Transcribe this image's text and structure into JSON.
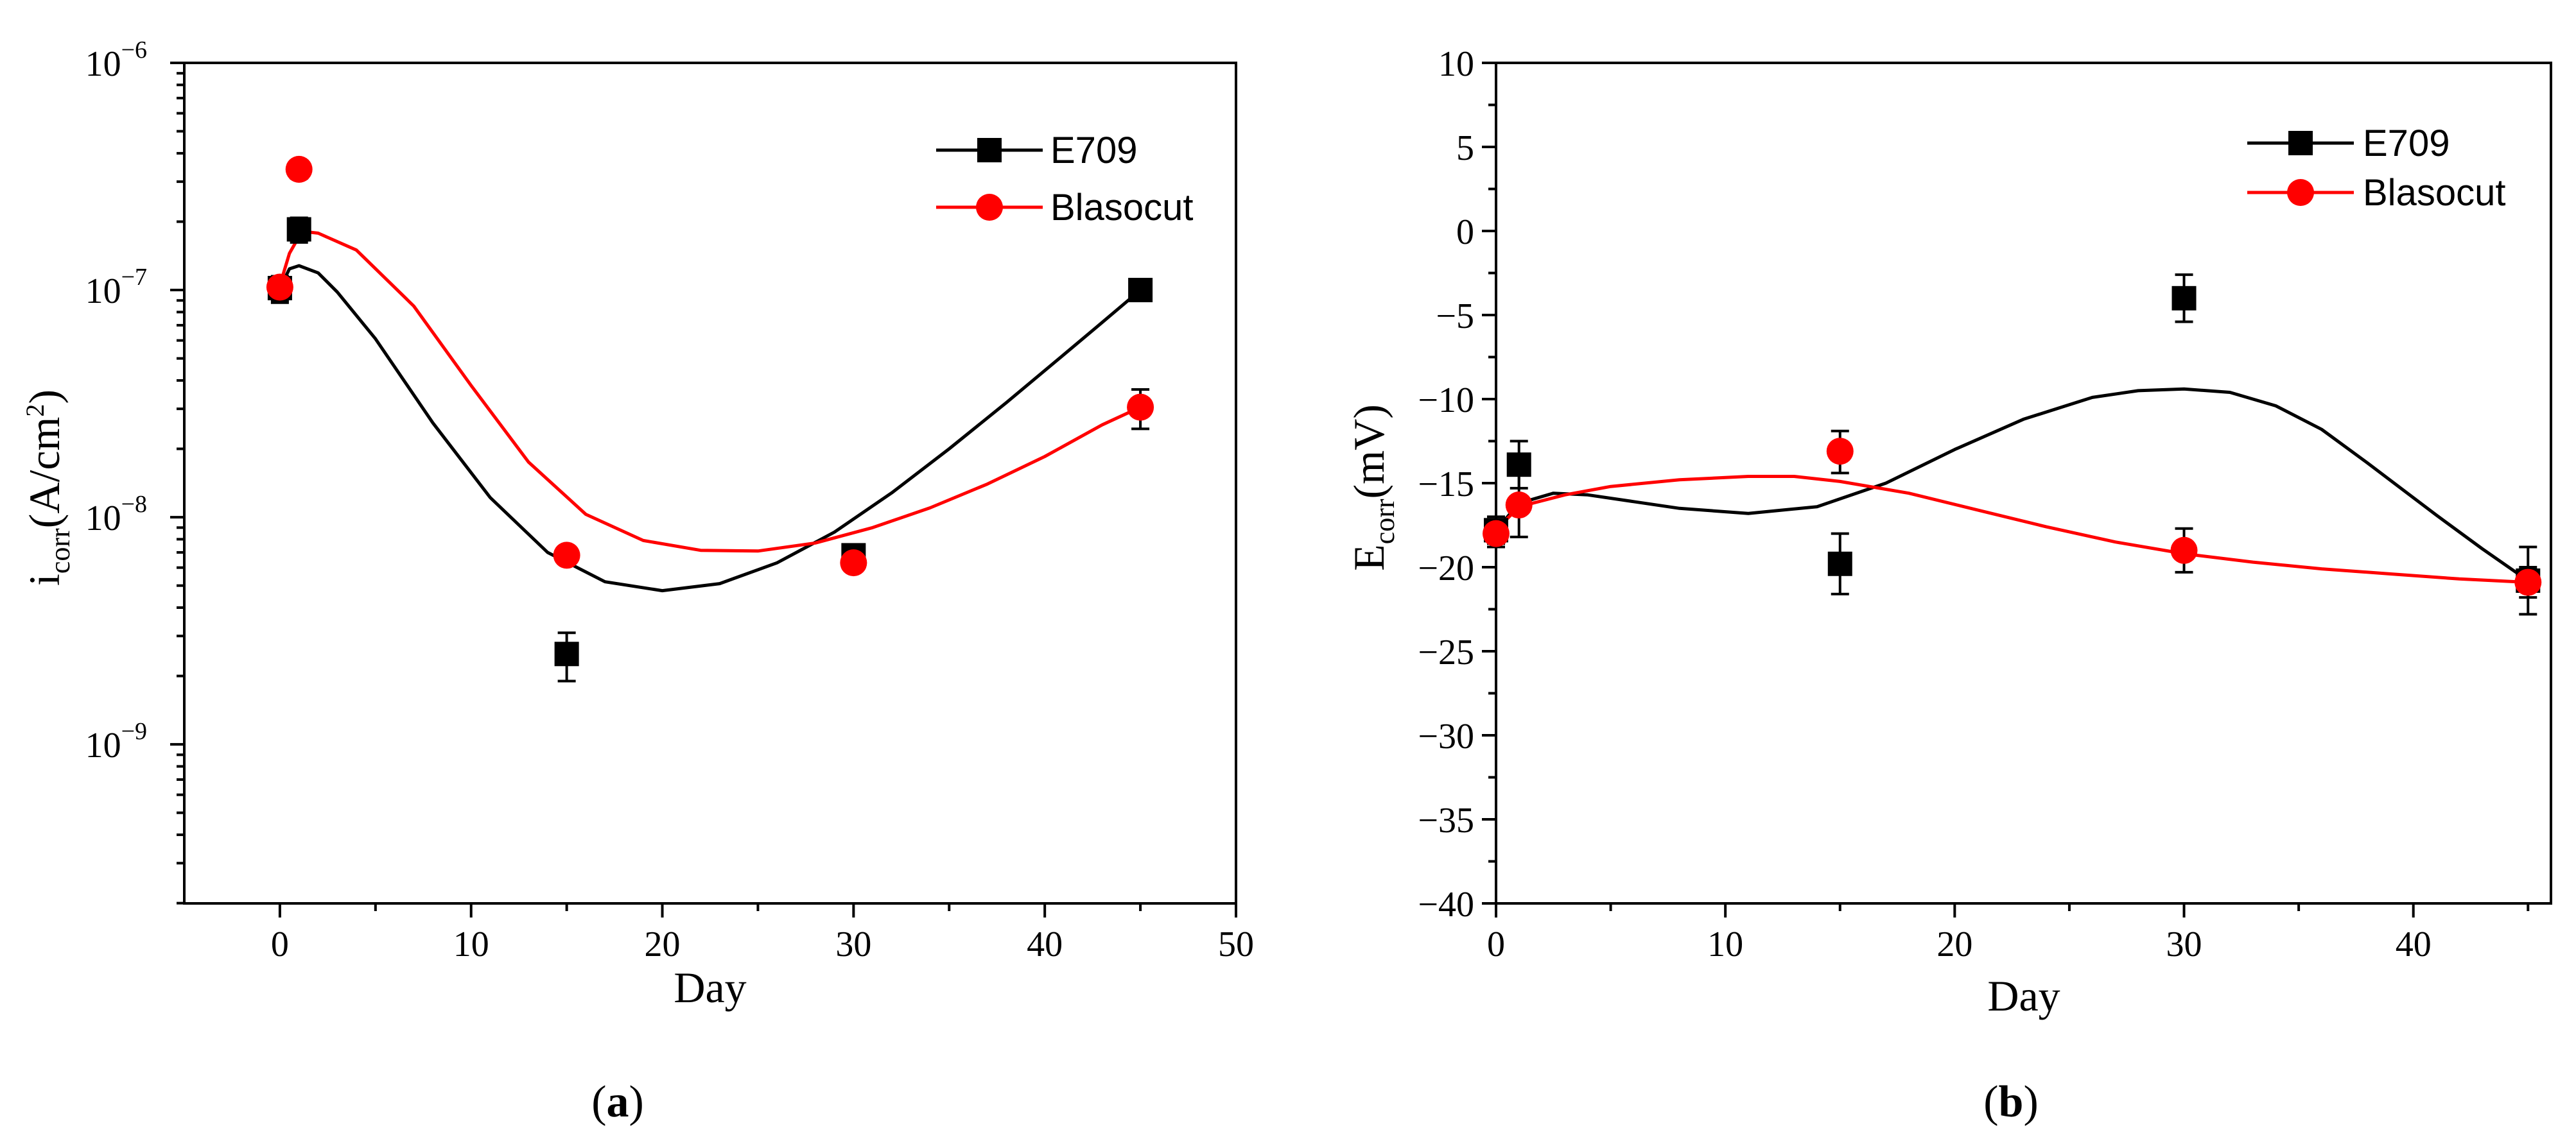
{
  "chart_data": [
    {
      "type": "scatter",
      "panel_label_open": "(",
      "panel_label_letter": "a",
      "panel_label_close": ")",
      "xlabel": "Day",
      "ylabel_main": "i",
      "ylabel_sub": "corr",
      "ylabel_unit": "(A/cm",
      "ylabel_sup": "2",
      "ylabel_close": ")",
      "yscale": "log",
      "xlim": [
        -5,
        50
      ],
      "ylim_exp": [
        -9.7,
        -6
      ],
      "xticks": [
        0,
        10,
        20,
        30,
        40,
        50
      ],
      "xtick_labels": [
        "0",
        "10",
        "20",
        "30",
        "40",
        "50"
      ],
      "yticks_exp": [
        -9,
        -8,
        -7,
        -6
      ],
      "ytick_base": "10",
      "ytick_exps": [
        "−9",
        "−8",
        "−7",
        "−6"
      ],
      "legend_position": "top-right",
      "series": [
        {
          "name": "E709",
          "color": "#000000",
          "marker": "square",
          "x": [
            0,
            1,
            15,
            30,
            45
          ],
          "y": [
            1.02e-07,
            1.85e-07,
            2.5e-09,
            6.8e-09,
            1e-07
          ],
          "err_low": [
            8.8e-08,
            1.62e-07,
            1.9e-09,
            6.2e-09,
            9.7e-08
          ],
          "err_high": [
            1.15e-07,
            2.08e-07,
            3.1e-09,
            7.4e-09,
            1.03e-07
          ],
          "fit_x": [
            0,
            0.5,
            1,
            2,
            3,
            5,
            8,
            11,
            14,
            17,
            20,
            23,
            26,
            29,
            32,
            35,
            38,
            41,
            43,
            45
          ],
          "fit_y": [
            1.02e-07,
            1.24e-07,
            1.28e-07,
            1.19e-07,
            9.8e-08,
            6.1e-08,
            2.6e-08,
            1.22e-08,
            7e-09,
            5.2e-09,
            4.75e-09,
            5.1e-09,
            6.3e-09,
            8.6e-09,
            1.28e-08,
            2e-08,
            3.2e-08,
            5.2e-08,
            7.2e-08,
            1e-07
          ]
        },
        {
          "name": "Blasocut",
          "color": "#ff0000",
          "marker": "circle",
          "x": [
            0,
            1,
            15,
            30,
            45
          ],
          "y": [
            1.03e-07,
            3.4e-07,
            6.8e-09,
            6.3e-09,
            3.05e-08
          ],
          "err_low": [
            9e-08,
            3.1e-07,
            6.4e-09,
            5.9e-09,
            2.45e-08
          ],
          "err_high": [
            1.15e-07,
            3.7e-07,
            7.2e-09,
            6.7e-09,
            3.65e-08
          ],
          "fit_x": [
            0,
            0.5,
            1,
            1.5,
            2,
            4,
            7,
            10,
            13,
            16,
            19,
            22,
            25,
            28,
            31,
            34,
            37,
            40,
            43,
            45
          ],
          "fit_y": [
            1.05e-07,
            1.45e-07,
            1.72e-07,
            1.8e-07,
            1.78e-07,
            1.5e-07,
            8.5e-08,
            3.8e-08,
            1.75e-08,
            1.03e-08,
            7.9e-09,
            7.15e-09,
            7.1e-09,
            7.7e-09,
            9e-09,
            1.1e-08,
            1.4e-08,
            1.85e-08,
            2.55e-08,
            3.05e-08
          ]
        }
      ]
    },
    {
      "type": "scatter",
      "panel_label_open": "(",
      "panel_label_letter": "b",
      "panel_label_close": ")",
      "xlabel": "Day",
      "ylabel_main": "E",
      "ylabel_sub": "corr",
      "ylabel_unit": "(mV)",
      "yscale": "linear",
      "xlim": [
        0,
        46
      ],
      "ylim": [
        -40,
        10
      ],
      "xticks": [
        0,
        10,
        20,
        30,
        40
      ],
      "xtick_labels": [
        "0",
        "10",
        "20",
        "30",
        "40"
      ],
      "yticks": [
        -40,
        -35,
        -30,
        -25,
        -20,
        -15,
        -10,
        -5,
        0,
        5,
        10
      ],
      "ytick_labels": [
        "−40",
        "−35",
        "−30",
        "−25",
        "−20",
        "−15",
        "−10",
        "−5",
        "0",
        "5",
        "10"
      ],
      "legend_position": "top-right",
      "series": [
        {
          "name": "E709",
          "color": "#000000",
          "marker": "square",
          "x": [
            0,
            1,
            15,
            30,
            45
          ],
          "y": [
            -17.8,
            -13.9,
            -19.8,
            -4.0,
            -20.8
          ],
          "err_low": [
            -18.6,
            -15.3,
            -21.6,
            -5.4,
            -22.8
          ],
          "err_high": [
            -17.0,
            -12.5,
            -18.0,
            -2.6,
            -18.8
          ],
          "fit_x": [
            0,
            1,
            2.5,
            4,
            6,
            8,
            11,
            14,
            17,
            20,
            23,
            26,
            28,
            30,
            32,
            34,
            36,
            38,
            41,
            43,
            45
          ],
          "fit_y": [
            -17.8,
            -16.2,
            -15.6,
            -15.7,
            -16.1,
            -16.5,
            -16.8,
            -16.4,
            -15.0,
            -13.0,
            -11.2,
            -9.9,
            -9.5,
            -9.4,
            -9.6,
            -10.4,
            -11.8,
            -13.8,
            -16.9,
            -18.9,
            -20.8
          ]
        },
        {
          "name": "Blasocut",
          "color": "#ff0000",
          "marker": "circle",
          "x": [
            0,
            1,
            15,
            30,
            45
          ],
          "y": [
            -18.0,
            -16.3,
            -13.1,
            -19.0,
            -20.9
          ],
          "err_low": [
            -18.8,
            -18.2,
            -14.4,
            -20.3,
            -21.8
          ],
          "err_high": [
            -17.2,
            -14.4,
            -11.9,
            -17.7,
            -20.0
          ],
          "fit_x": [
            0,
            1,
            3,
            5,
            8,
            11,
            13,
            15,
            18,
            21,
            24,
            27,
            30,
            33,
            36,
            39,
            42,
            45
          ],
          "fit_y": [
            -17.8,
            -16.4,
            -15.7,
            -15.2,
            -14.8,
            -14.6,
            -14.6,
            -14.9,
            -15.6,
            -16.6,
            -17.6,
            -18.5,
            -19.2,
            -19.7,
            -20.1,
            -20.4,
            -20.7,
            -20.9
          ]
        }
      ]
    }
  ]
}
